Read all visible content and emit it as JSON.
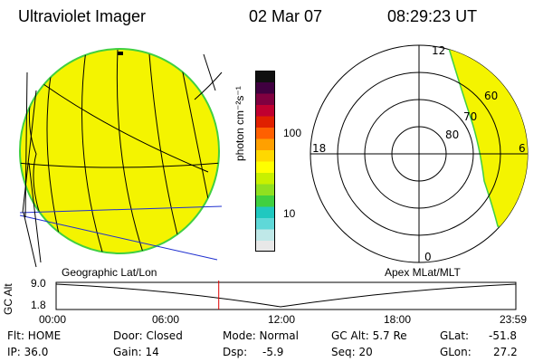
{
  "header": {
    "instrument": "Ultraviolet Imager",
    "date": "02 Mar 07",
    "time": "08:29:23 UT"
  },
  "colorbar": {
    "unit_label": "photon cm⁻²s⁻¹",
    "tick_100": "100",
    "tick_10": "10",
    "colors": [
      "#e8e8e8",
      "#bfe8e8",
      "#5fd8d8",
      "#20c8c0",
      "#40d040",
      "#90e020",
      "#c8f000",
      "#ffff00",
      "#ffd800",
      "#ffa000",
      "#ff6000",
      "#e02000",
      "#c00030",
      "#800040",
      "#400040",
      "#101010"
    ]
  },
  "polar": {
    "mlt_12": "12",
    "mlt_18": "18",
    "mlt_6": "6",
    "mlt_0": "0",
    "lat_60": "60",
    "lat_70": "70",
    "lat_80": "80"
  },
  "panels": {
    "left_caption": "Geographic Lat/Lon",
    "right_caption": "Apex MLat/MLT"
  },
  "altitude_plot": {
    "axis_label": "GC Alt",
    "y_max": "9.0",
    "y_min": "1.8",
    "time_ticks": [
      "00:00",
      "06:00",
      "12:00",
      "18:00",
      "23:59"
    ],
    "current_time_marker_hours": 8.49
  },
  "info": {
    "flt": "Flt: HOME",
    "ip": "IP: 36.0",
    "door": "Door: Closed",
    "gain": "Gain: 14",
    "mode": "Mode: Normal",
    "dsp_label": "Dsp:",
    "dsp_value": "-5.9",
    "gcalt": "GC Alt: 5.7 Re",
    "seq": "Seq: 20",
    "glat_label": "GLat:",
    "glat_value": "-51.8",
    "glon_label": "GLon:",
    "glon_value": "27.2"
  }
}
